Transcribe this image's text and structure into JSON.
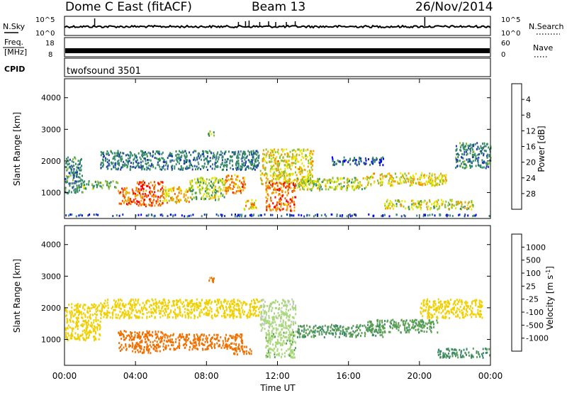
{
  "header": {
    "station": "Dome C East (fitACF)",
    "beam": "Beam 13",
    "date": "26/Nov/2014"
  },
  "top_panels": {
    "nsky": {
      "label": "N.Sky",
      "tick_top": "10^5",
      "tick_bottom": "10^0",
      "right_label": "N.Search",
      "right_tick_top": "10^5",
      "right_tick_bottom": "10^0"
    },
    "freq": {
      "label_line1": "Freq.",
      "label_line2": "[MHz]",
      "tick_top": "18",
      "tick_bottom": "8",
      "right_label": "Nave",
      "right_tick_top": "60",
      "right_tick_bottom": "0"
    },
    "cpid": {
      "label": "CPID",
      "value": "twofsound 3501"
    }
  },
  "power_panel": {
    "ylabel": "Slant Range [km]",
    "yticks": [
      "1000",
      "2000",
      "3000",
      "4000"
    ],
    "colorbar_label": "Power [dB]",
    "colorbar_ticks": [
      "4",
      "8",
      "12",
      "16",
      "20",
      "24",
      "28"
    ],
    "colorbar_colors": [
      "#0000ff",
      "#1e3fa8",
      "#3f8a78",
      "#2e8b57",
      "#90c030",
      "#e8e800",
      "#f0a000",
      "#f06000",
      "#ff0000"
    ]
  },
  "velocity_panel": {
    "ylabel": "Slant Range [km]",
    "yticks": [
      "1000",
      "2000",
      "3000",
      "4000"
    ],
    "colorbar_label": "Velocity [m s^-1]",
    "colorbar_ticks": [
      "1000",
      "500",
      "100",
      "25",
      "-25",
      "-100",
      "-500",
      "-1000"
    ],
    "colorbar_colors": [
      "#1f3fa0",
      "#2a6fb0",
      "#3d8a6a",
      "#5aa050",
      "#a8d878",
      "#c8c8c8",
      "#f0d000",
      "#f0a020",
      "#f07000",
      "#ff2000"
    ]
  },
  "xaxis": {
    "label": "Time UT",
    "ticks": [
      "00:00",
      "04:00",
      "08:00",
      "12:00",
      "16:00",
      "20:00",
      "00:00"
    ]
  },
  "chart_data": [
    {
      "type": "heatmap",
      "title": "Dome C East (fitACF) Beam 13 26/Nov/2014",
      "xlabel": "Time UT",
      "ylabel": "Slant Range [km]",
      "xlim": [
        0,
        24
      ],
      "ylim": [
        180,
        4600
      ],
      "colorbar": {
        "label": "Power [dB]",
        "range": [
          0,
          32
        ]
      },
      "regions": [
        {
          "t": [
            0.0,
            1.0
          ],
          "r": [
            1000,
            2150
          ],
          "v": 10
        },
        {
          "t": [
            0.0,
            24.0
          ],
          "r": [
            280,
            340
          ],
          "v": 6
        },
        {
          "t": [
            1.0,
            3.0
          ],
          "r": [
            1150,
            1400
          ],
          "v": 14
        },
        {
          "t": [
            2.0,
            11.0
          ],
          "r": [
            1750,
            2350
          ],
          "v": 9
        },
        {
          "t": [
            3.0,
            4.0
          ],
          "r": [
            650,
            1200
          ],
          "v": 26
        },
        {
          "t": [
            4.0,
            5.5
          ],
          "r": [
            600,
            1400
          ],
          "v": 27
        },
        {
          "t": [
            5.5,
            7.0
          ],
          "r": [
            700,
            1200
          ],
          "v": 22
        },
        {
          "t": [
            7.0,
            9.0
          ],
          "r": [
            800,
            1500
          ],
          "v": 17
        },
        {
          "t": [
            9.0,
            10.2
          ],
          "r": [
            1000,
            1600
          ],
          "v": 24
        },
        {
          "t": [
            10.0,
            10.8
          ],
          "r": [
            500,
            800
          ],
          "v": 22
        },
        {
          "t": [
            11.0,
            14.0
          ],
          "r": [
            1300,
            2400
          ],
          "v": 20
        },
        {
          "t": [
            11.3,
            13.0
          ],
          "r": [
            450,
            1350
          ],
          "v": 26
        },
        {
          "t": [
            13.0,
            17.0
          ],
          "r": [
            1100,
            1500
          ],
          "v": 18
        },
        {
          "t": [
            15.0,
            18.0
          ],
          "r": [
            1900,
            2150
          ],
          "v": 7
        },
        {
          "t": [
            17.0,
            21.5
          ],
          "r": [
            1250,
            1650
          ],
          "v": 20
        },
        {
          "t": [
            18.0,
            23.0
          ],
          "r": [
            500,
            800
          ],
          "v": 18
        },
        {
          "t": [
            22.0,
            24.0
          ],
          "r": [
            1800,
            2600
          ],
          "v": 10
        },
        {
          "t": [
            8.0,
            8.4
          ],
          "r": [
            2800,
            3000
          ],
          "v": 16
        }
      ]
    },
    {
      "type": "heatmap",
      "title": "",
      "xlabel": "Time UT",
      "ylabel": "Slant Range [km]",
      "xlim": [
        0,
        24
      ],
      "ylim": [
        180,
        4600
      ],
      "colorbar": {
        "label": "Velocity [m s^-1]",
        "range": [
          -1000,
          1000
        ]
      },
      "regions": [
        {
          "t": [
            0.0,
            2.0
          ],
          "r": [
            1000,
            2150
          ],
          "v": 15
        },
        {
          "t": [
            2.0,
            11.0
          ],
          "r": [
            1700,
            2300
          ],
          "v": 0
        },
        {
          "t": [
            3.0,
            5.5
          ],
          "r": [
            600,
            1300
          ],
          "v": -200
        },
        {
          "t": [
            5.5,
            10.0
          ],
          "r": [
            700,
            1200
          ],
          "v": -150
        },
        {
          "t": [
            9.5,
            10.5
          ],
          "r": [
            550,
            800
          ],
          "v": -300
        },
        {
          "t": [
            11.0,
            13.0
          ],
          "r": [
            1300,
            2300
          ],
          "v": 60
        },
        {
          "t": [
            11.3,
            13.0
          ],
          "r": [
            450,
            1300
          ],
          "v": 80
        },
        {
          "t": [
            13.0,
            18.0
          ],
          "r": [
            1100,
            1500
          ],
          "v": 250
        },
        {
          "t": [
            17.0,
            21.0
          ],
          "r": [
            1250,
            1650
          ],
          "v": 200
        },
        {
          "t": [
            20.0,
            23.5
          ],
          "r": [
            1700,
            2300
          ],
          "v": 0
        },
        {
          "t": [
            21.0,
            24.0
          ],
          "r": [
            450,
            750
          ],
          "v": 300
        },
        {
          "t": [
            8.0,
            8.4
          ],
          "r": [
            2800,
            3000
          ],
          "v": -120
        }
      ]
    }
  ]
}
